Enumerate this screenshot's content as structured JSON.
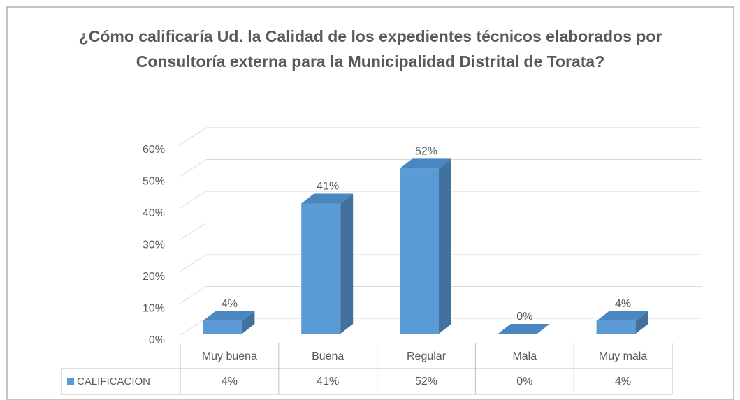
{
  "chart_data": {
    "type": "bar3d",
    "title": "¿Cómo calificaría Ud. la Calidad de los expedientes técnicos elaborados por Consultoría externa para la Municipalidad Distrital de Torata?",
    "categories": [
      "Muy buena",
      "Buena",
      "Regular",
      "Mala",
      "Muy mala"
    ],
    "series": [
      {
        "name": "CALIFICACION",
        "color": "#5b9bd5",
        "values": [
          4,
          41,
          52,
          0,
          4
        ],
        "value_labels": [
          "4%",
          "41%",
          "52%",
          "0%",
          "4%"
        ]
      }
    ],
    "ylim": [
      0,
      60
    ],
    "yticks": [
      {
        "value": 0,
        "label": "0%"
      },
      {
        "value": 10,
        "label": "10%"
      },
      {
        "value": 20,
        "label": "20%"
      },
      {
        "value": 30,
        "label": "30%"
      },
      {
        "value": 40,
        "label": "40%"
      },
      {
        "value": 50,
        "label": "50%"
      },
      {
        "value": 60,
        "label": "60%"
      }
    ],
    "grid": true
  }
}
